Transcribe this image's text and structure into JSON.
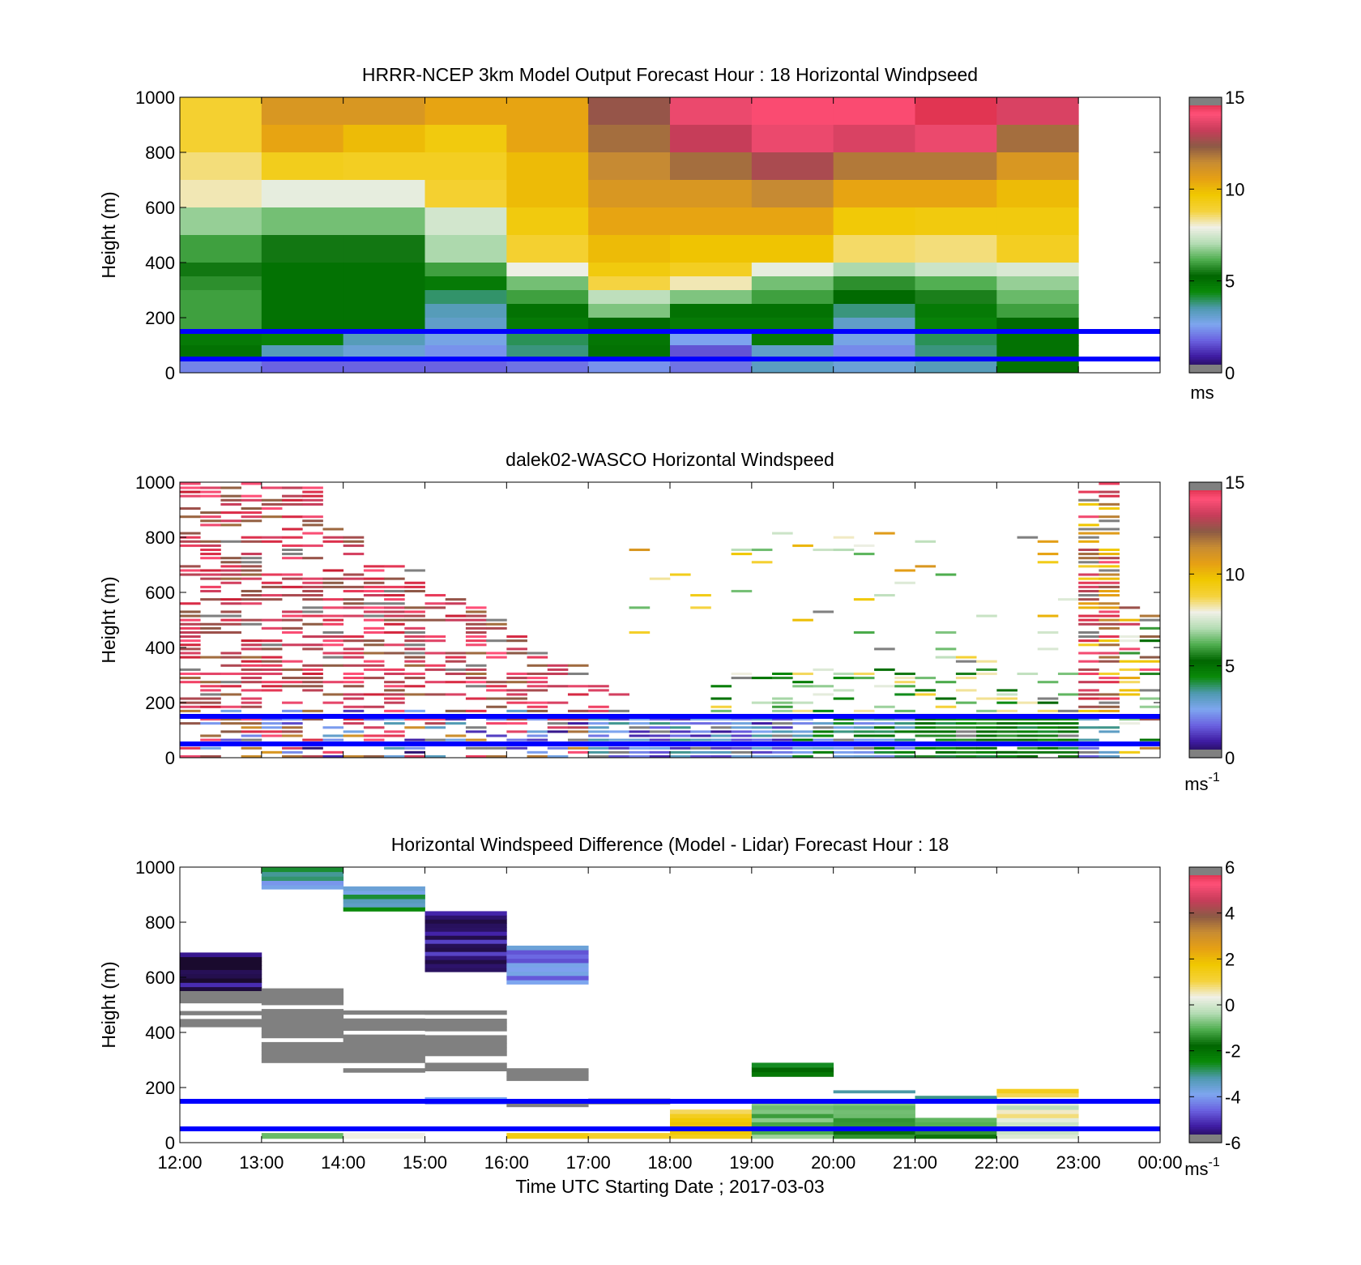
{
  "figure": {
    "xlabel": "Time UTC  Starting Date ; 2017-03-03",
    "x_tick_labels": [
      "12:00",
      "13:00",
      "14:00",
      "15:00",
      "16:00",
      "17:00",
      "18:00",
      "19:00",
      "20:00",
      "21:00",
      "22:00",
      "23:00",
      "00:00"
    ],
    "ylabel": "Height (m)",
    "y_tick_labels": [
      "0",
      "200",
      "400",
      "600",
      "800",
      "1000"
    ],
    "reference_line_color": "#0000ff",
    "grey_bad_color": "#808080"
  },
  "colormap": {
    "name": "custom",
    "stops": [
      "#1a0a2e",
      "#3d1aa0",
      "#6a60e0",
      "#7ea6f0",
      "#4f9ab0",
      "#0a8a0a",
      "#006600",
      "#4fae4f",
      "#b4dcb4",
      "#f0f0e6",
      "#f5d23c",
      "#f0c800",
      "#e6a014",
      "#c88c32",
      "#8c5a46",
      "#c83c5a",
      "#ff5078",
      "#c81e32"
    ]
  },
  "chart_data": [
    {
      "type": "heatmap",
      "title": "HRRR-NCEP 3km Model Output   Forecast Hour : 18 Horizontal Windpseed",
      "xlabel": "",
      "ylabel": "Height (m)",
      "x_hours_utc": [
        12,
        13,
        14,
        15,
        16,
        17,
        18,
        19,
        20,
        21,
        22,
        23
      ],
      "xlim_hours_utc": [
        12,
        24
      ],
      "ylim_m": [
        0,
        1000
      ],
      "colorbar": {
        "range": [
          0,
          15
        ],
        "ticks": [
          "0",
          "5",
          "10",
          "15"
        ],
        "unit": "ms"
      },
      "reference_lines_m": [
        50,
        150
      ],
      "height_bands_m": [
        1000,
        900,
        800,
        700,
        600,
        500,
        400,
        350,
        300,
        250,
        200,
        150,
        100,
        50,
        0
      ],
      "values_ms": [
        [
          9.0,
          11.0,
          11.0,
          10.5,
          10.5,
          12.5,
          13.8,
          14.2,
          14.2,
          14.6,
          13.5
        ],
        [
          9.0,
          10.5,
          10.0,
          9.5,
          10.5,
          12.0,
          13.2,
          13.8,
          13.5,
          13.8,
          12.0
        ],
        [
          8.5,
          9.3,
          9.2,
          9.2,
          10.0,
          11.5,
          12.0,
          12.8,
          11.8,
          11.8,
          11.0
        ],
        [
          8.2,
          7.8,
          7.8,
          9.0,
          10.0,
          11.0,
          11.0,
          11.5,
          10.5,
          10.5,
          10.0
        ],
        [
          6.8,
          6.5,
          6.5,
          7.5,
          9.5,
          10.5,
          10.5,
          10.5,
          9.6,
          9.5,
          9.5
        ],
        [
          6.0,
          5.5,
          5.5,
          7.0,
          9.0,
          10.0,
          9.8,
          9.8,
          8.6,
          8.5,
          9.2
        ],
        [
          5.5,
          5.0,
          5.0,
          6.0,
          7.9,
          9.5,
          9.2,
          7.8,
          7.0,
          7.4,
          7.6
        ],
        [
          5.8,
          5.0,
          5.0,
          4.8,
          6.5,
          8.8,
          8.2,
          6.5,
          5.8,
          6.2,
          6.8
        ],
        [
          6.0,
          5.0,
          5.0,
          3.9,
          6.0,
          7.2,
          6.6,
          6.0,
          5.2,
          5.6,
          6.4
        ],
        [
          6.0,
          5.0,
          5.0,
          3.4,
          5.0,
          6.6,
          5.0,
          5.0,
          3.8,
          4.8,
          6.0
        ],
        [
          6.0,
          5.0,
          5.0,
          3.2,
          4.8,
          5.2,
          4.8,
          4.8,
          3.2,
          4.6,
          5.2
        ],
        [
          4.8,
          4.6,
          3.4,
          2.8,
          4.0,
          4.9,
          2.6,
          4.8,
          2.8,
          4.0,
          5.0
        ],
        [
          5.0,
          3.4,
          3.0,
          2.4,
          3.8,
          5.0,
          1.6,
          3.2,
          2.3,
          3.8,
          5.0
        ],
        [
          2.2,
          1.8,
          1.8,
          1.8,
          2.0,
          2.4,
          2.0,
          3.3,
          3.0,
          3.4,
          5.0
        ]
      ]
    },
    {
      "type": "heatmap",
      "title": "dalek02-WASCO  Horizontal Windspeed",
      "xlabel": "",
      "ylabel": "Height (m)",
      "xlim_hours_utc": [
        12,
        24
      ],
      "ylim_m": [
        0,
        1000
      ],
      "colorbar": {
        "range": [
          0,
          15
        ],
        "ticks": [
          "0",
          "5",
          "10",
          "15"
        ],
        "unit": "ms",
        "unit_exponent": "-1"
      },
      "reference_lines_m": [
        50,
        150
      ],
      "pattern_note": "Sparse lidar returns: strong speeds (12-15 m/s) aloft descending from ~1000 m at 12:00 to ~200 m by 16:00; weak speeds (1-6 m/s) below 300 m after 17:00; strong speeds (10-15 m/s) through the column near 23:00; grey = out-of-range values."
    },
    {
      "type": "heatmap",
      "title": "Horizontal Windspeed Difference (Model - Lidar) Forecast Hour : 18",
      "xlabel": "Time UTC  Starting Date ; 2017-03-03",
      "ylabel": "Height (m)",
      "xlim_hours_utc": [
        12,
        24
      ],
      "ylim_m": [
        0,
        1000
      ],
      "colorbar": {
        "range": [
          -6,
          6
        ],
        "ticks": [
          "-6",
          "-4",
          "-2",
          "0",
          "2",
          "4",
          "6"
        ],
        "unit": "ms",
        "unit_exponent": "-1"
      },
      "reference_lines_m": [
        50,
        150
      ],
      "blocks": [
        {
          "hour": 12,
          "bottom_m": 550,
          "top_m": 690,
          "value": -5.6
        },
        {
          "hour": 12,
          "bottom_m": 420,
          "top_m": 550,
          "value": "grey"
        },
        {
          "hour": 13,
          "bottom_m": 950,
          "top_m": 1000,
          "value": -3.2
        },
        {
          "hour": 13,
          "bottom_m": 920,
          "top_m": 950,
          "value": -4.0
        },
        {
          "hour": 13,
          "bottom_m": 290,
          "top_m": 560,
          "value": "grey"
        },
        {
          "hour": 13,
          "bottom_m": 15,
          "top_m": 35,
          "value": -0.4
        },
        {
          "hour": 14,
          "bottom_m": 900,
          "top_m": 930,
          "value": -4.0
        },
        {
          "hour": 14,
          "bottom_m": 840,
          "top_m": 900,
          "value": -3.0
        },
        {
          "hour": 14,
          "bottom_m": 290,
          "top_m": 480,
          "value": "grey"
        },
        {
          "hour": 14,
          "bottom_m": 255,
          "top_m": 270,
          "value": "grey"
        },
        {
          "hour": 14,
          "bottom_m": 15,
          "top_m": 35,
          "value": 0.8
        },
        {
          "hour": 15,
          "bottom_m": 620,
          "top_m": 840,
          "value": -5.4
        },
        {
          "hour": 15,
          "bottom_m": 300,
          "top_m": 480,
          "value": "grey"
        },
        {
          "hour": 15,
          "bottom_m": 260,
          "top_m": 290,
          "value": "grey"
        },
        {
          "hour": 15,
          "bottom_m": 140,
          "top_m": 165,
          "value": -4.4
        },
        {
          "hour": 16,
          "bottom_m": 575,
          "top_m": 715,
          "value": -4.2
        },
        {
          "hour": 16,
          "bottom_m": 225,
          "top_m": 270,
          "value": "grey"
        },
        {
          "hour": 16,
          "bottom_m": 130,
          "top_m": 170,
          "value": "grey"
        },
        {
          "hour": 16,
          "bottom_m": 15,
          "top_m": 35,
          "value": 1.2
        },
        {
          "hour": 17,
          "bottom_m": 140,
          "top_m": 160,
          "value": "grey"
        },
        {
          "hour": 17,
          "bottom_m": 15,
          "top_m": 35,
          "value": 1.2
        },
        {
          "hour": 18,
          "bottom_m": 15,
          "top_m": 120,
          "value": 1.4
        },
        {
          "hour": 19,
          "bottom_m": 240,
          "top_m": 290,
          "value": -2.0
        },
        {
          "hour": 19,
          "bottom_m": 15,
          "top_m": 150,
          "value": -0.8
        },
        {
          "hour": 20,
          "bottom_m": 180,
          "top_m": 190,
          "value": -3.0
        },
        {
          "hour": 20,
          "bottom_m": 15,
          "top_m": 150,
          "value": -1.3
        },
        {
          "hour": 21,
          "bottom_m": 160,
          "top_m": 170,
          "value": -3.0
        },
        {
          "hour": 21,
          "bottom_m": 15,
          "top_m": 90,
          "value": -1.2
        },
        {
          "hour": 22,
          "bottom_m": 165,
          "top_m": 195,
          "value": 1.2
        },
        {
          "hour": 22,
          "bottom_m": 15,
          "top_m": 150,
          "value": 0.3
        }
      ]
    }
  ]
}
